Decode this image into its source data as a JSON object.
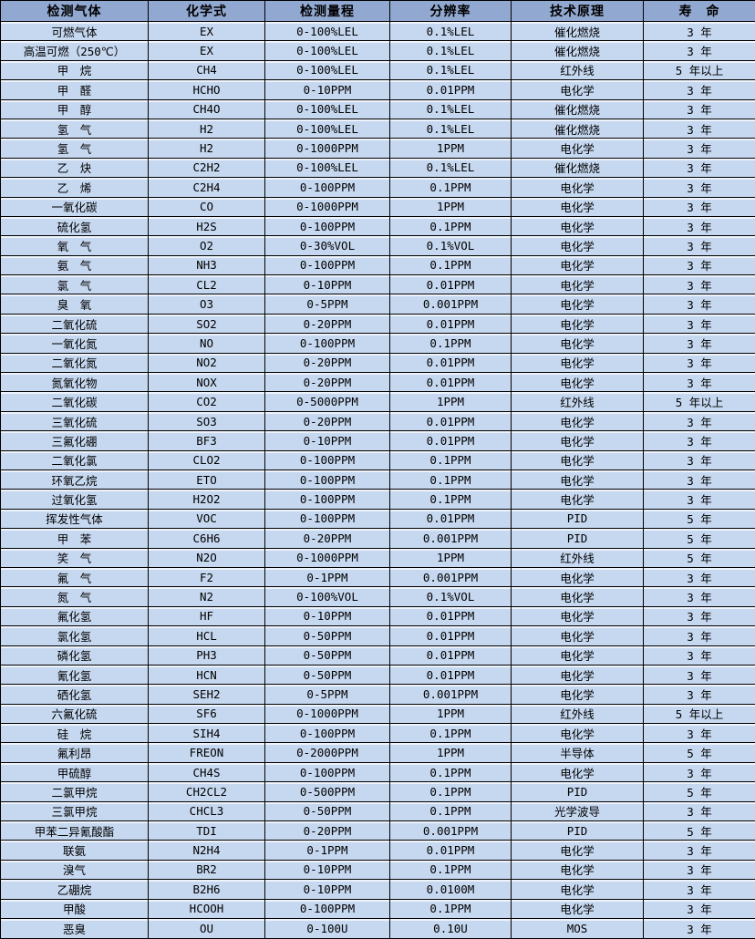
{
  "colors": {
    "header_bg": "#91a8d0",
    "row_bg": "#c6d8f0",
    "border": "#000000",
    "cell_highlight": "#eef3fb"
  },
  "table": {
    "headers": [
      "检测气体",
      "化学式",
      "检测量程",
      "分辨率",
      "技术原理",
      "寿　命"
    ],
    "rows": [
      [
        "可燃气体",
        "EX",
        "0-100%LEL",
        "0.1%LEL",
        "催化燃烧",
        "3 年"
      ],
      [
        "高温可燃（250℃）",
        "EX",
        "0-100%LEL",
        "0.1%LEL",
        "催化燃烧",
        "3 年"
      ],
      [
        "甲　烷",
        "CH4",
        "0-100%LEL",
        "0.1%LEL",
        "红外线",
        "5 年以上"
      ],
      [
        "甲　醛",
        "HCHO",
        "0-10PPM",
        "0.01PPM",
        "电化学",
        "3 年"
      ],
      [
        "甲　醇",
        "CH4O",
        "0-100%LEL",
        "0.1%LEL",
        "催化燃烧",
        "3 年"
      ],
      [
        "氢　气",
        "H2",
        "0-100%LEL",
        "0.1%LEL",
        "催化燃烧",
        "3 年"
      ],
      [
        "氢　气",
        "H2",
        "0-1000PPM",
        "1PPM",
        "电化学",
        "3 年"
      ],
      [
        "乙　炔",
        "C2H2",
        "0-100%LEL",
        "0.1%LEL",
        "催化燃烧",
        "3 年"
      ],
      [
        "乙　烯",
        "C2H4",
        "0-100PPM",
        "0.1PPM",
        "电化学",
        "3 年"
      ],
      [
        "一氧化碳",
        "CO",
        "0-1000PPM",
        "1PPM",
        "电化学",
        "3 年"
      ],
      [
        "硫化氢",
        "H2S",
        "0-100PPM",
        "0.1PPM",
        "电化学",
        "3 年"
      ],
      [
        "氧　气",
        "O2",
        "0-30%VOL",
        "0.1%VOL",
        "电化学",
        "3 年"
      ],
      [
        "氨　气",
        "NH3",
        "0-100PPM",
        "0.1PPM",
        "电化学",
        "3 年"
      ],
      [
        "氯　气",
        "CL2",
        "0-10PPM",
        "0.01PPM",
        "电化学",
        "3 年"
      ],
      [
        "臭　氧",
        "O3",
        "0-5PPM",
        "0.001PPM",
        "电化学",
        "3 年"
      ],
      [
        "二氧化硫",
        "SO2",
        "0-20PPM",
        "0.01PPM",
        "电化学",
        "3 年"
      ],
      [
        "一氧化氮",
        "NO",
        "0-100PPM",
        "0.1PPM",
        "电化学",
        "3 年"
      ],
      [
        "二氧化氮",
        "NO2",
        "0-20PPM",
        "0.01PPM",
        "电化学",
        "3 年"
      ],
      [
        "氮氧化物",
        "NOX",
        "0-20PPM",
        "0.01PPM",
        "电化学",
        "3 年"
      ],
      [
        "二氧化碳",
        "CO2",
        "0-5000PPM",
        "1PPM",
        "红外线",
        "5 年以上"
      ],
      [
        "三氧化硫",
        "SO3",
        "0-20PPM",
        "0.01PPM",
        "电化学",
        "3 年"
      ],
      [
        "三氟化硼",
        "BF3",
        "0-10PPM",
        "0.01PPM",
        "电化学",
        "3 年"
      ],
      [
        "二氧化氯",
        "CLO2",
        "0-100PPM",
        "0.1PPM",
        "电化学",
        "3 年"
      ],
      [
        "环氧乙烷",
        "ETO",
        "0-100PPM",
        "0.1PPM",
        "电化学",
        "3 年"
      ],
      [
        "过氧化氢",
        "H2O2",
        "0-100PPM",
        "0.1PPM",
        "电化学",
        "3 年"
      ],
      [
        "挥发性气体",
        "VOC",
        "0-100PPM",
        "0.01PPM",
        "PID",
        "5 年"
      ],
      [
        "甲　苯",
        "C6H6",
        "0-20PPM",
        "0.001PPM",
        "PID",
        "5 年"
      ],
      [
        "笑　气",
        "N2O",
        "0-1000PPM",
        "1PPM",
        "红外线",
        "5 年"
      ],
      [
        "氟　气",
        "F2",
        "0-1PPM",
        "0.001PPM",
        "电化学",
        "3 年"
      ],
      [
        "氮　气",
        "N2",
        "0-100%VOL",
        "0.1%VOL",
        "电化学",
        "3 年"
      ],
      [
        "氟化氢",
        "HF",
        "0-10PPM",
        "0.01PPM",
        "电化学",
        "3 年"
      ],
      [
        "氯化氢",
        "HCL",
        "0-50PPM",
        "0.01PPM",
        "电化学",
        "3 年"
      ],
      [
        "磷化氢",
        "PH3",
        "0-50PPM",
        "0.01PPM",
        "电化学",
        "3 年"
      ],
      [
        "氰化氢",
        "HCN",
        "0-50PPM",
        "0.01PPM",
        "电化学",
        "3 年"
      ],
      [
        "硒化氢",
        "SEH2",
        "0-5PPM",
        "0.001PPM",
        "电化学",
        "3 年"
      ],
      [
        "六氟化硫",
        "SF6",
        "0-1000PPM",
        "1PPM",
        "红外线",
        "5 年以上"
      ],
      [
        "硅　烷",
        "SIH4",
        "0-100PPM",
        "0.1PPM",
        "电化学",
        "3 年"
      ],
      [
        "氟利昂",
        "FREON",
        "0-2000PPM",
        "1PPM",
        "半导体",
        "5 年"
      ],
      [
        "甲硫醇",
        "CH4S",
        "0-100PPM",
        "0.1PPM",
        "电化学",
        "3 年"
      ],
      [
        "二氯甲烷",
        "CH2CL2",
        "0-500PPM",
        "0.1PPM",
        "PID",
        "5 年"
      ],
      [
        "三氯甲烷",
        "CHCL3",
        "0-50PPM",
        "0.1PPM",
        "光学波导",
        "3 年"
      ],
      [
        "甲苯二异氰酸酯",
        "TDI",
        "0-20PPM",
        "0.001PPM",
        "PID",
        "5 年"
      ],
      [
        "联氨",
        "N2H4",
        "0-1PPM",
        "0.01PPM",
        "电化学",
        "3 年"
      ],
      [
        "溴气",
        "BR2",
        "0-10PPM",
        "0.1PPM",
        "电化学",
        "3 年"
      ],
      [
        "乙硼烷",
        "B2H6",
        "0-10PPM",
        "0.0100M",
        "电化学",
        "3 年"
      ],
      [
        "甲酸",
        "HCOOH",
        "0-100PPM",
        "0.1PPM",
        "电化学",
        "3 年"
      ],
      [
        "恶臭",
        "OU",
        "0-100U",
        "0.10U",
        "MOS",
        "3 年"
      ]
    ]
  }
}
